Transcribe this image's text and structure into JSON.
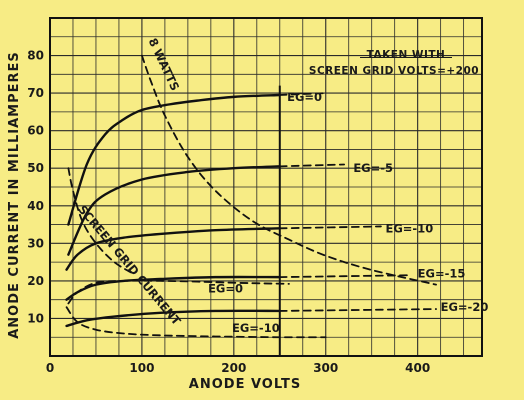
{
  "chart_data": {
    "type": "line",
    "xlabel": "ANODE VOLTS",
    "ylabel": "ANODE CURRENT IN MILLIAMPERES",
    "xlim": [
      0,
      470
    ],
    "ylim": [
      0,
      90
    ],
    "x_ticks": [
      0,
      100,
      200,
      300,
      400
    ],
    "y_ticks": [
      10,
      20,
      30,
      40,
      50,
      60,
      70,
      80
    ],
    "grid": true,
    "annotation": [
      "TAKEN WITH",
      "SCREEN GRID VOLTS=+200"
    ],
    "reference_line_x": 250,
    "series": [
      {
        "name": "EG=0",
        "style": "solid",
        "x": [
          20,
          40,
          60,
          80,
          100,
          130,
          160,
          200,
          250
        ],
        "y": [
          35,
          51,
          59,
          63,
          65.5,
          67,
          68,
          69,
          69.5
        ]
      },
      {
        "name": "",
        "style": "dashed",
        "x": [
          250,
          300
        ],
        "y": [
          69.5,
          70
        ]
      },
      {
        "name": "EG=-5",
        "style": "solid",
        "x": [
          20,
          40,
          60,
          100,
          150,
          200,
          250
        ],
        "y": [
          27,
          38,
          43,
          47,
          49,
          50,
          50.5
        ]
      },
      {
        "name": "",
        "style": "dashed",
        "x": [
          250,
          320
        ],
        "y": [
          50.5,
          51
        ]
      },
      {
        "name": "EG=-10",
        "style": "solid",
        "x": [
          18,
          30,
          50,
          80,
          120,
          180,
          250
        ],
        "y": [
          23,
          27,
          30,
          31.5,
          32.5,
          33.5,
          34
        ]
      },
      {
        "name": "",
        "style": "dashed",
        "x": [
          250,
          360
        ],
        "y": [
          34,
          34.5
        ]
      },
      {
        "name": "EG=-15",
        "style": "solid",
        "x": [
          18,
          30,
          50,
          80,
          120,
          180,
          250
        ],
        "y": [
          15,
          17,
          19,
          20,
          20.5,
          21,
          21
        ]
      },
      {
        "name": "",
        "style": "dashed",
        "x": [
          250,
          390
        ],
        "y": [
          21,
          21.5
        ]
      },
      {
        "name": "EG=-20",
        "style": "solid",
        "x": [
          18,
          40,
          70,
          120,
          180,
          250
        ],
        "y": [
          8,
          9.5,
          10.5,
          11.5,
          12,
          12
        ]
      },
      {
        "name": "",
        "style": "dashed",
        "x": [
          250,
          420
        ],
        "y": [
          12,
          12.5
        ]
      },
      {
        "name": "8 WATTS",
        "style": "dashed",
        "x": [
          100,
          110,
          125,
          150,
          180,
          220,
          260,
          300,
          350,
          420
        ],
        "y": [
          80,
          73,
          64,
          53,
          44,
          36,
          31,
          26.7,
          22.9,
          19
        ]
      },
      {
        "name": "SCREEN GRID CURRENT",
        "style": "dashed",
        "x": [
          20,
          25,
          35,
          50,
          70,
          90
        ],
        "y": [
          50,
          44,
          36,
          30,
          25,
          22
        ]
      },
      {
        "name": "",
        "style": "dashed",
        "x": [
          20,
          30,
          50,
          80,
          120,
          160,
          200,
          260
        ],
        "y": [
          14,
          17,
          19.5,
          20,
          20,
          19.8,
          19.5,
          19.2
        ]
      },
      {
        "name": "",
        "style": "dashed",
        "x": [
          18,
          30,
          50,
          80,
          120,
          180,
          250,
          300
        ],
        "y": [
          13,
          9,
          7,
          6,
          5.5,
          5.2,
          5,
          5
        ]
      }
    ],
    "curve_labels": [
      {
        "text": "EG=0",
        "x": 258,
        "y": 69
      },
      {
        "text": "EG=-5",
        "x": 330,
        "y": 50
      },
      {
        "text": "EG=-10",
        "x": 365,
        "y": 34
      },
      {
        "text": "EG=-15",
        "x": 400,
        "y": 22
      },
      {
        "text": "EG=-20",
        "x": 425,
        "y": 13
      },
      {
        "text": "EG=0",
        "x": 172,
        "y": 18
      },
      {
        "text": "EG=-10",
        "x": 198,
        "y": 7.5
      }
    ]
  }
}
